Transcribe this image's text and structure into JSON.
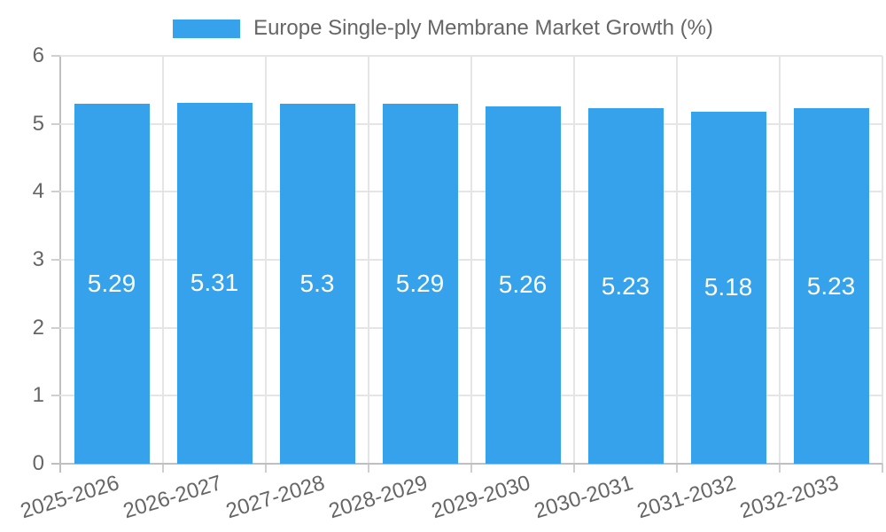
{
  "chart_data": {
    "type": "bar",
    "title": "Europe Single-ply Membrane Market Growth (%)",
    "categories": [
      "2025-2026",
      "2026-2027",
      "2027-2028",
      "2028-2029",
      "2029-2030",
      "2030-2031",
      "2031-2032",
      "2032-2033"
    ],
    "values": [
      5.29,
      5.31,
      5.3,
      5.29,
      5.26,
      5.23,
      5.18,
      5.23
    ],
    "value_labels": [
      "5.29",
      "5.31",
      "5.3",
      "5.29",
      "5.26",
      "5.23",
      "5.18",
      "5.23"
    ],
    "xlabel": "",
    "ylabel": "",
    "ylim": [
      0,
      6
    ],
    "y_ticks": [
      0,
      1,
      2,
      3,
      4,
      5,
      6
    ],
    "grid": true,
    "legend_position": "top",
    "legend_entries": [
      "Europe Single-ply Membrane Market Growth (%)"
    ],
    "colors": {
      "bar": "#36A2EB",
      "grid": "#E5E5E5",
      "axis": "#BFBFBF",
      "tick": "#CFCFCF",
      "label_text": "#666666",
      "value_text": "#FFFFFF",
      "background": "#FFFFFF"
    }
  }
}
